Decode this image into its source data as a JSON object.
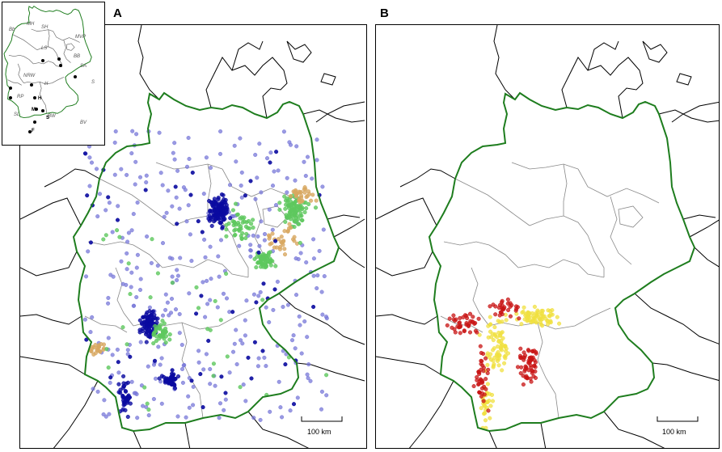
{
  "panels": {
    "a_label": "A",
    "b_label": "B"
  },
  "scale_bar": {
    "label": "100 km"
  },
  "inset": {
    "state_labels": [
      "Bb",
      "MH",
      "SH",
      "MVP",
      "LS",
      "BB",
      "SA",
      "NRW",
      "H",
      "S",
      "RP",
      "BW",
      "SL",
      "BV"
    ],
    "city_labels": [
      "H",
      "M",
      "S",
      "F"
    ]
  },
  "colors": {
    "border": "#1e7d1e",
    "state_lines": "#888888",
    "coast": "#000000",
    "blue_dark": "#0a0aa0",
    "blue_light": "#7878d8",
    "green": "#5ec85e",
    "orange": "#d8a860",
    "red": "#c81414",
    "yellow": "#f0e040"
  }
}
